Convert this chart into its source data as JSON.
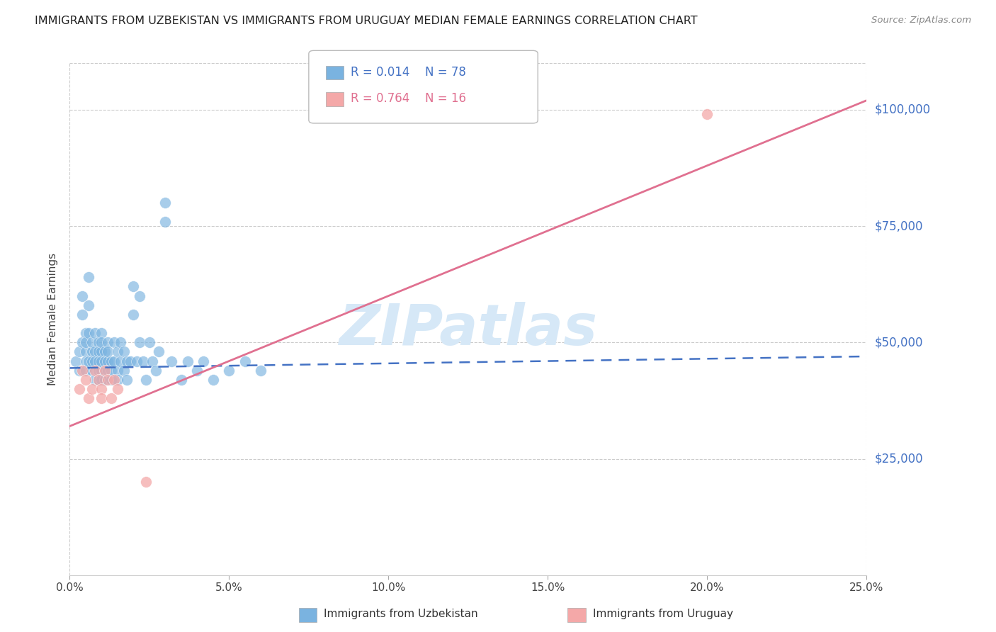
{
  "title": "IMMIGRANTS FROM UZBEKISTAN VS IMMIGRANTS FROM URUGUAY MEDIAN FEMALE EARNINGS CORRELATION CHART",
  "source": "Source: ZipAtlas.com",
  "ylabel": "Median Female Earnings",
  "blue_color": "#7ab3e0",
  "pink_color": "#f4a8a8",
  "trendline_blue_color": "#4472c4",
  "trendline_pink_color": "#e07090",
  "axis_color": "#4472c4",
  "grid_color": "#cccccc",
  "background": "#ffffff",
  "watermark_color": "#d6e8f7",
  "legend_uzbekistan_r": "R = 0.014",
  "legend_uzbekistan_n": "N = 78",
  "legend_uruguay_r": "R = 0.764",
  "legend_uruguay_n": "N = 16",
  "legend_label_uzbekistan": "Immigrants from Uzbekistan",
  "legend_label_uruguay": "Immigrants from Uruguay",
  "ytick_values": [
    25000,
    50000,
    75000,
    100000
  ],
  "ytick_labels": [
    "$25,000",
    "$50,000",
    "$75,000",
    "$100,000"
  ],
  "xtick_values": [
    0.0,
    0.05,
    0.1,
    0.15,
    0.2,
    0.25
  ],
  "xtick_labels": [
    "0.0%",
    "5.0%",
    "10.0%",
    "15.0%",
    "20.0%",
    "25.0%"
  ],
  "xlim": [
    0.0,
    0.25
  ],
  "ylim": [
    0,
    110000
  ],
  "uzbek_trend_x": [
    0.0,
    0.25
  ],
  "uzbek_trend_y": [
    44500,
    47000
  ],
  "uruguay_trend_x": [
    0.0,
    0.25
  ],
  "uruguay_trend_y": [
    32000,
    102000
  ],
  "uzbek_scatter_x": [
    0.002,
    0.003,
    0.003,
    0.004,
    0.004,
    0.004,
    0.005,
    0.005,
    0.005,
    0.005,
    0.005,
    0.006,
    0.006,
    0.006,
    0.006,
    0.007,
    0.007,
    0.007,
    0.007,
    0.008,
    0.008,
    0.008,
    0.008,
    0.009,
    0.009,
    0.009,
    0.009,
    0.009,
    0.01,
    0.01,
    0.01,
    0.01,
    0.01,
    0.01,
    0.011,
    0.011,
    0.011,
    0.012,
    0.012,
    0.012,
    0.012,
    0.013,
    0.013,
    0.013,
    0.014,
    0.014,
    0.015,
    0.015,
    0.015,
    0.016,
    0.016,
    0.017,
    0.017,
    0.018,
    0.018,
    0.019,
    0.02,
    0.02,
    0.021,
    0.022,
    0.022,
    0.023,
    0.024,
    0.025,
    0.026,
    0.027,
    0.028,
    0.03,
    0.03,
    0.032,
    0.035,
    0.037,
    0.04,
    0.042,
    0.045,
    0.05,
    0.055,
    0.06
  ],
  "uzbek_scatter_y": [
    46000,
    48000,
    44000,
    50000,
    56000,
    60000,
    48000,
    46000,
    52000,
    44000,
    50000,
    46000,
    52000,
    64000,
    58000,
    48000,
    44000,
    50000,
    46000,
    52000,
    48000,
    42000,
    46000,
    50000,
    44000,
    48000,
    46000,
    42000,
    52000,
    48000,
    44000,
    46000,
    50000,
    42000,
    48000,
    46000,
    42000,
    50000,
    46000,
    44000,
    48000,
    46000,
    42000,
    44000,
    50000,
    46000,
    48000,
    44000,
    42000,
    46000,
    50000,
    48000,
    44000,
    46000,
    42000,
    46000,
    62000,
    56000,
    46000,
    50000,
    60000,
    46000,
    42000,
    50000,
    46000,
    44000,
    48000,
    80000,
    76000,
    46000,
    42000,
    46000,
    44000,
    46000,
    42000,
    44000,
    46000,
    44000
  ],
  "uruguay_scatter_x": [
    0.003,
    0.004,
    0.005,
    0.006,
    0.007,
    0.008,
    0.009,
    0.01,
    0.01,
    0.011,
    0.012,
    0.013,
    0.014,
    0.015,
    0.024,
    0.2
  ],
  "uruguay_scatter_y": [
    40000,
    44000,
    42000,
    38000,
    40000,
    44000,
    42000,
    40000,
    38000,
    44000,
    42000,
    38000,
    42000,
    40000,
    20000,
    99000
  ]
}
